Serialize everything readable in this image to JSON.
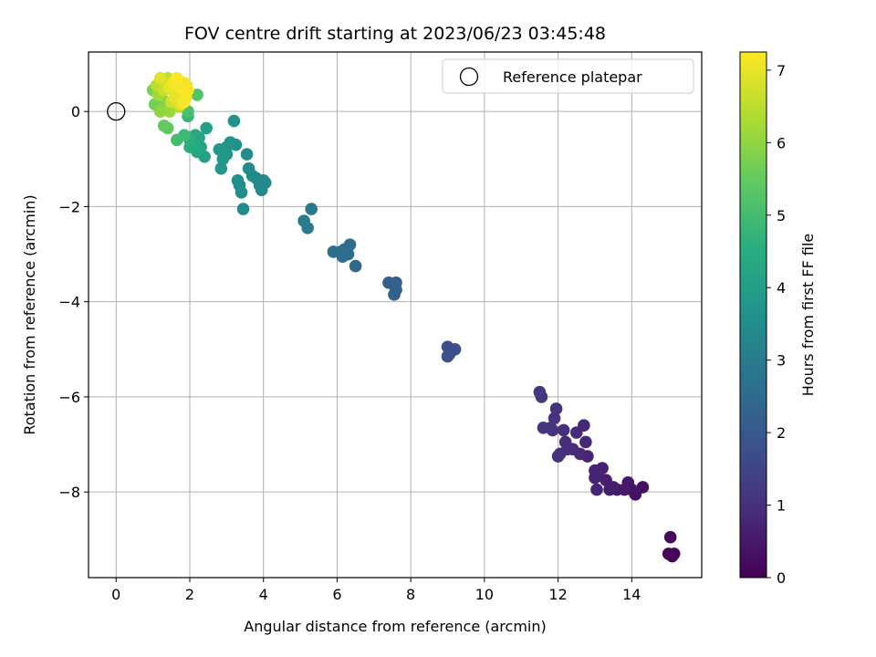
{
  "chart_data": {
    "type": "scatter",
    "title": "FOV centre drift starting at 2023/06/23 03:45:48",
    "xlabel": "Angular distance from reference (arcmin)",
    "ylabel": "Rotation from reference (arcmin)",
    "colorbar_label": "Hours from first FF file",
    "xlim": [
      -0.75,
      15.9
    ],
    "ylim": [
      -9.8,
      1.25
    ],
    "clim": [
      0,
      7.25
    ],
    "x_ticks": [
      0,
      2,
      4,
      6,
      8,
      10,
      12,
      14
    ],
    "y_ticks": [
      0,
      -2,
      -4,
      -6,
      -8
    ],
    "colorbar_ticks": [
      0,
      1,
      2,
      3,
      4,
      5,
      6,
      7
    ],
    "grid": true,
    "colormap": "viridis",
    "legend": {
      "position": "upper-right",
      "entries": [
        "Reference platepar"
      ]
    },
    "reference": {
      "x": 0,
      "y": 0,
      "label": "Reference platepar"
    },
    "points": [
      [
        15.1,
        -9.35,
        0.05
      ],
      [
        15.15,
        -9.3,
        0.08
      ],
      [
        15.0,
        -9.3,
        0.12
      ],
      [
        15.05,
        -8.95,
        0.18
      ],
      [
        14.3,
        -7.9,
        0.3
      ],
      [
        14.1,
        -8.05,
        0.35
      ],
      [
        14.0,
        -7.95,
        0.4
      ],
      [
        13.9,
        -7.8,
        0.45
      ],
      [
        13.8,
        -7.95,
        0.5
      ],
      [
        13.6,
        -7.95,
        0.52
      ],
      [
        13.5,
        -7.9,
        0.55
      ],
      [
        13.4,
        -7.95,
        0.6
      ],
      [
        13.3,
        -7.75,
        0.62
      ],
      [
        13.2,
        -7.5,
        0.65
      ],
      [
        13.1,
        -7.55,
        0.68
      ],
      [
        13.0,
        -7.7,
        0.7
      ],
      [
        13.0,
        -7.55,
        0.72
      ],
      [
        13.05,
        -7.95,
        0.74
      ],
      [
        12.8,
        -7.25,
        0.75
      ],
      [
        12.75,
        -6.95,
        0.78
      ],
      [
        12.7,
        -6.6,
        0.8
      ],
      [
        12.6,
        -7.2,
        0.82
      ],
      [
        12.5,
        -6.75,
        0.85
      ],
      [
        12.4,
        -7.1,
        0.88
      ],
      [
        12.25,
        -7.1,
        0.9
      ],
      [
        12.2,
        -6.95,
        0.92
      ],
      [
        12.15,
        -6.7,
        0.95
      ],
      [
        12.05,
        -7.2,
        0.97
      ],
      [
        12.0,
        -7.25,
        1.0
      ],
      [
        11.95,
        -6.25,
        1.02
      ],
      [
        11.9,
        -6.45,
        1.05
      ],
      [
        11.8,
        -6.65,
        1.08
      ],
      [
        11.85,
        -6.7,
        1.1
      ],
      [
        11.6,
        -6.65,
        1.12
      ],
      [
        11.55,
        -6.0,
        1.15
      ],
      [
        11.5,
        -5.9,
        1.17
      ],
      [
        9.0,
        -4.95,
        1.7
      ],
      [
        9.05,
        -5.1,
        1.72
      ],
      [
        9.2,
        -5.0,
        1.75
      ],
      [
        9.0,
        -5.15,
        1.78
      ],
      [
        7.4,
        -3.6,
        2.15
      ],
      [
        7.55,
        -3.65,
        2.18
      ],
      [
        7.6,
        -3.6,
        2.2
      ],
      [
        7.6,
        -3.75,
        2.22
      ],
      [
        7.55,
        -3.85,
        2.25
      ],
      [
        6.5,
        -3.25,
        2.45
      ],
      [
        6.35,
        -2.8,
        2.5
      ],
      [
        6.3,
        -3.0,
        2.52
      ],
      [
        6.2,
        -2.9,
        2.55
      ],
      [
        6.15,
        -3.05,
        2.58
      ],
      [
        6.1,
        -2.95,
        2.6
      ],
      [
        5.9,
        -2.95,
        2.62
      ],
      [
        5.3,
        -2.05,
        2.9
      ],
      [
        5.2,
        -2.45,
        2.95
      ],
      [
        5.1,
        -2.3,
        3.0
      ],
      [
        4.05,
        -1.5,
        3.3
      ],
      [
        4.0,
        -1.45,
        3.32
      ],
      [
        3.9,
        -1.55,
        3.35
      ],
      [
        3.95,
        -1.65,
        3.37
      ],
      [
        3.8,
        -1.4,
        3.4
      ],
      [
        3.7,
        -1.35,
        3.42
      ],
      [
        3.6,
        -1.2,
        3.45
      ],
      [
        3.55,
        -0.9,
        3.5
      ],
      [
        3.45,
        -2.05,
        3.52
      ],
      [
        3.4,
        -1.7,
        3.55
      ],
      [
        3.35,
        -1.55,
        3.57
      ],
      [
        3.3,
        -1.45,
        3.6
      ],
      [
        3.25,
        -0.7,
        3.62
      ],
      [
        3.2,
        -0.2,
        3.65
      ],
      [
        3.1,
        -0.65,
        3.7
      ],
      [
        3.0,
        -0.75,
        3.72
      ],
      [
        3.0,
        -0.9,
        3.75
      ],
      [
        2.9,
        -1.0,
        3.8
      ],
      [
        2.85,
        -1.2,
        3.82
      ],
      [
        2.8,
        -0.8,
        3.85
      ],
      [
        2.45,
        -0.35,
        4.1
      ],
      [
        2.4,
        -0.95,
        4.15
      ],
      [
        2.3,
        -0.75,
        4.2
      ],
      [
        2.25,
        -0.55,
        4.25
      ],
      [
        2.2,
        -0.85,
        4.3
      ],
      [
        2.15,
        -0.5,
        4.35
      ],
      [
        2.1,
        -0.65,
        4.4
      ],
      [
        2.0,
        -0.75,
        4.5
      ],
      [
        2.0,
        -0.6,
        4.55
      ],
      [
        1.95,
        -0.1,
        4.8
      ],
      [
        1.85,
        -0.5,
        4.9
      ],
      [
        1.65,
        -0.6,
        5.0
      ],
      [
        1.95,
        0.0,
        5.1
      ],
      [
        2.2,
        0.35,
        5.2
      ],
      [
        1.5,
        0.1,
        5.3
      ],
      [
        1.4,
        -0.35,
        5.4
      ],
      [
        1.3,
        -0.3,
        5.5
      ],
      [
        1.2,
        0.1,
        5.6
      ],
      [
        1.05,
        0.15,
        5.7
      ],
      [
        1.0,
        0.45,
        5.8
      ],
      [
        1.35,
        0.2,
        5.9
      ],
      [
        1.2,
        0.0,
        6.0
      ],
      [
        1.45,
        0.0,
        6.1
      ],
      [
        1.15,
        0.35,
        6.2
      ],
      [
        1.25,
        0.6,
        6.3
      ],
      [
        1.55,
        0.45,
        6.35
      ],
      [
        1.7,
        0.1,
        6.4
      ],
      [
        1.1,
        0.55,
        6.5
      ],
      [
        1.4,
        0.7,
        6.55
      ],
      [
        1.6,
        0.55,
        6.6
      ],
      [
        1.3,
        0.45,
        6.65
      ],
      [
        1.5,
        0.2,
        6.7
      ],
      [
        1.8,
        0.4,
        6.75
      ],
      [
        1.9,
        0.55,
        6.8
      ],
      [
        1.7,
        0.65,
        6.85
      ],
      [
        1.2,
        0.7,
        6.9
      ],
      [
        1.6,
        0.3,
        6.95
      ],
      [
        1.75,
        0.15,
        7.0
      ],
      [
        1.45,
        0.5,
        7.05
      ],
      [
        1.85,
        0.6,
        7.1
      ],
      [
        1.9,
        0.3,
        7.12
      ],
      [
        1.55,
        0.6,
        7.15
      ],
      [
        1.75,
        0.5,
        7.18
      ],
      [
        1.85,
        0.2,
        7.2
      ],
      [
        1.65,
        0.7,
        7.22
      ],
      [
        1.95,
        0.45,
        7.25
      ]
    ]
  }
}
